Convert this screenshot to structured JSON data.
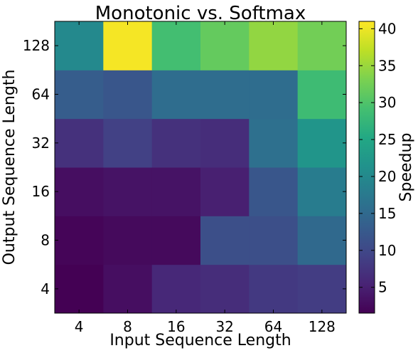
{
  "chart_data": {
    "type": "heatmap",
    "title": "Monotonic vs. Softmax",
    "xlabel": "Input Sequence Length",
    "ylabel": "Output Sequence Length",
    "colorbar_label": "Speedup",
    "colormap": "viridis",
    "x_categories": [
      "4",
      "8",
      "16",
      "32",
      "64",
      "128"
    ],
    "y_categories": [
      "4",
      "8",
      "16",
      "32",
      "64",
      "128"
    ],
    "values": [
      [
        1.5,
        3.0,
        6.0,
        6.5,
        8.0,
        8.5
      ],
      [
        2.0,
        2.5,
        2.5,
        11.0,
        11.0,
        15.0
      ],
      [
        3.0,
        3.5,
        3.5,
        5.0,
        12.0,
        18.0
      ],
      [
        7.0,
        9.0,
        7.0,
        6.5,
        16.0,
        22.0
      ],
      [
        13.0,
        12.0,
        15.5,
        15.5,
        15.5,
        28.5
      ],
      [
        20.0,
        40.5,
        29.0,
        31.5,
        34.5,
        32.5
      ]
    ],
    "value_range": [
      1.5,
      41
    ],
    "colorbar_ticks": [
      5,
      10,
      15,
      20,
      25,
      30,
      35,
      40
    ]
  }
}
